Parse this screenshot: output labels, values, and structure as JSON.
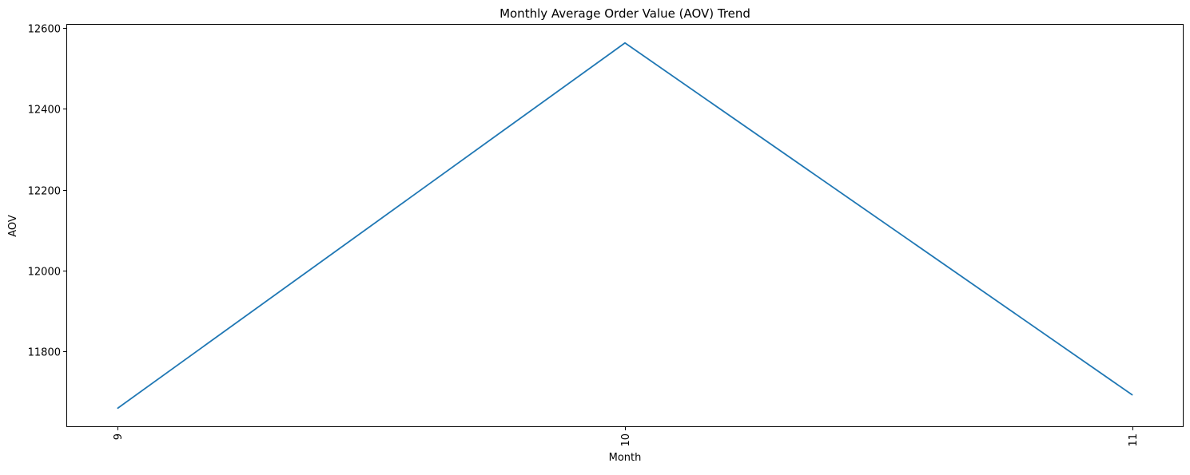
{
  "chart_data": {
    "type": "line",
    "title": "Monthly Average Order Value (AOV) Trend",
    "xlabel": "Month",
    "ylabel": "AOV",
    "x": [
      9,
      10,
      11
    ],
    "x_tick_labels": [
      "9",
      "10",
      "11"
    ],
    "series": [
      {
        "values": [
          11660,
          12563,
          11693
        ],
        "color": "#1f77b4"
      }
    ],
    "y_ticks": [
      11800,
      12000,
      12200,
      12400,
      12600
    ],
    "y_tick_labels": [
      "11800",
      "12000",
      "12200",
      "12400",
      "12600"
    ],
    "xlim": [
      8.9,
      11.1
    ],
    "ylim": [
      11615,
      12608
    ],
    "x_tick_rotation": "vertical",
    "grid": false,
    "legend": "none"
  }
}
